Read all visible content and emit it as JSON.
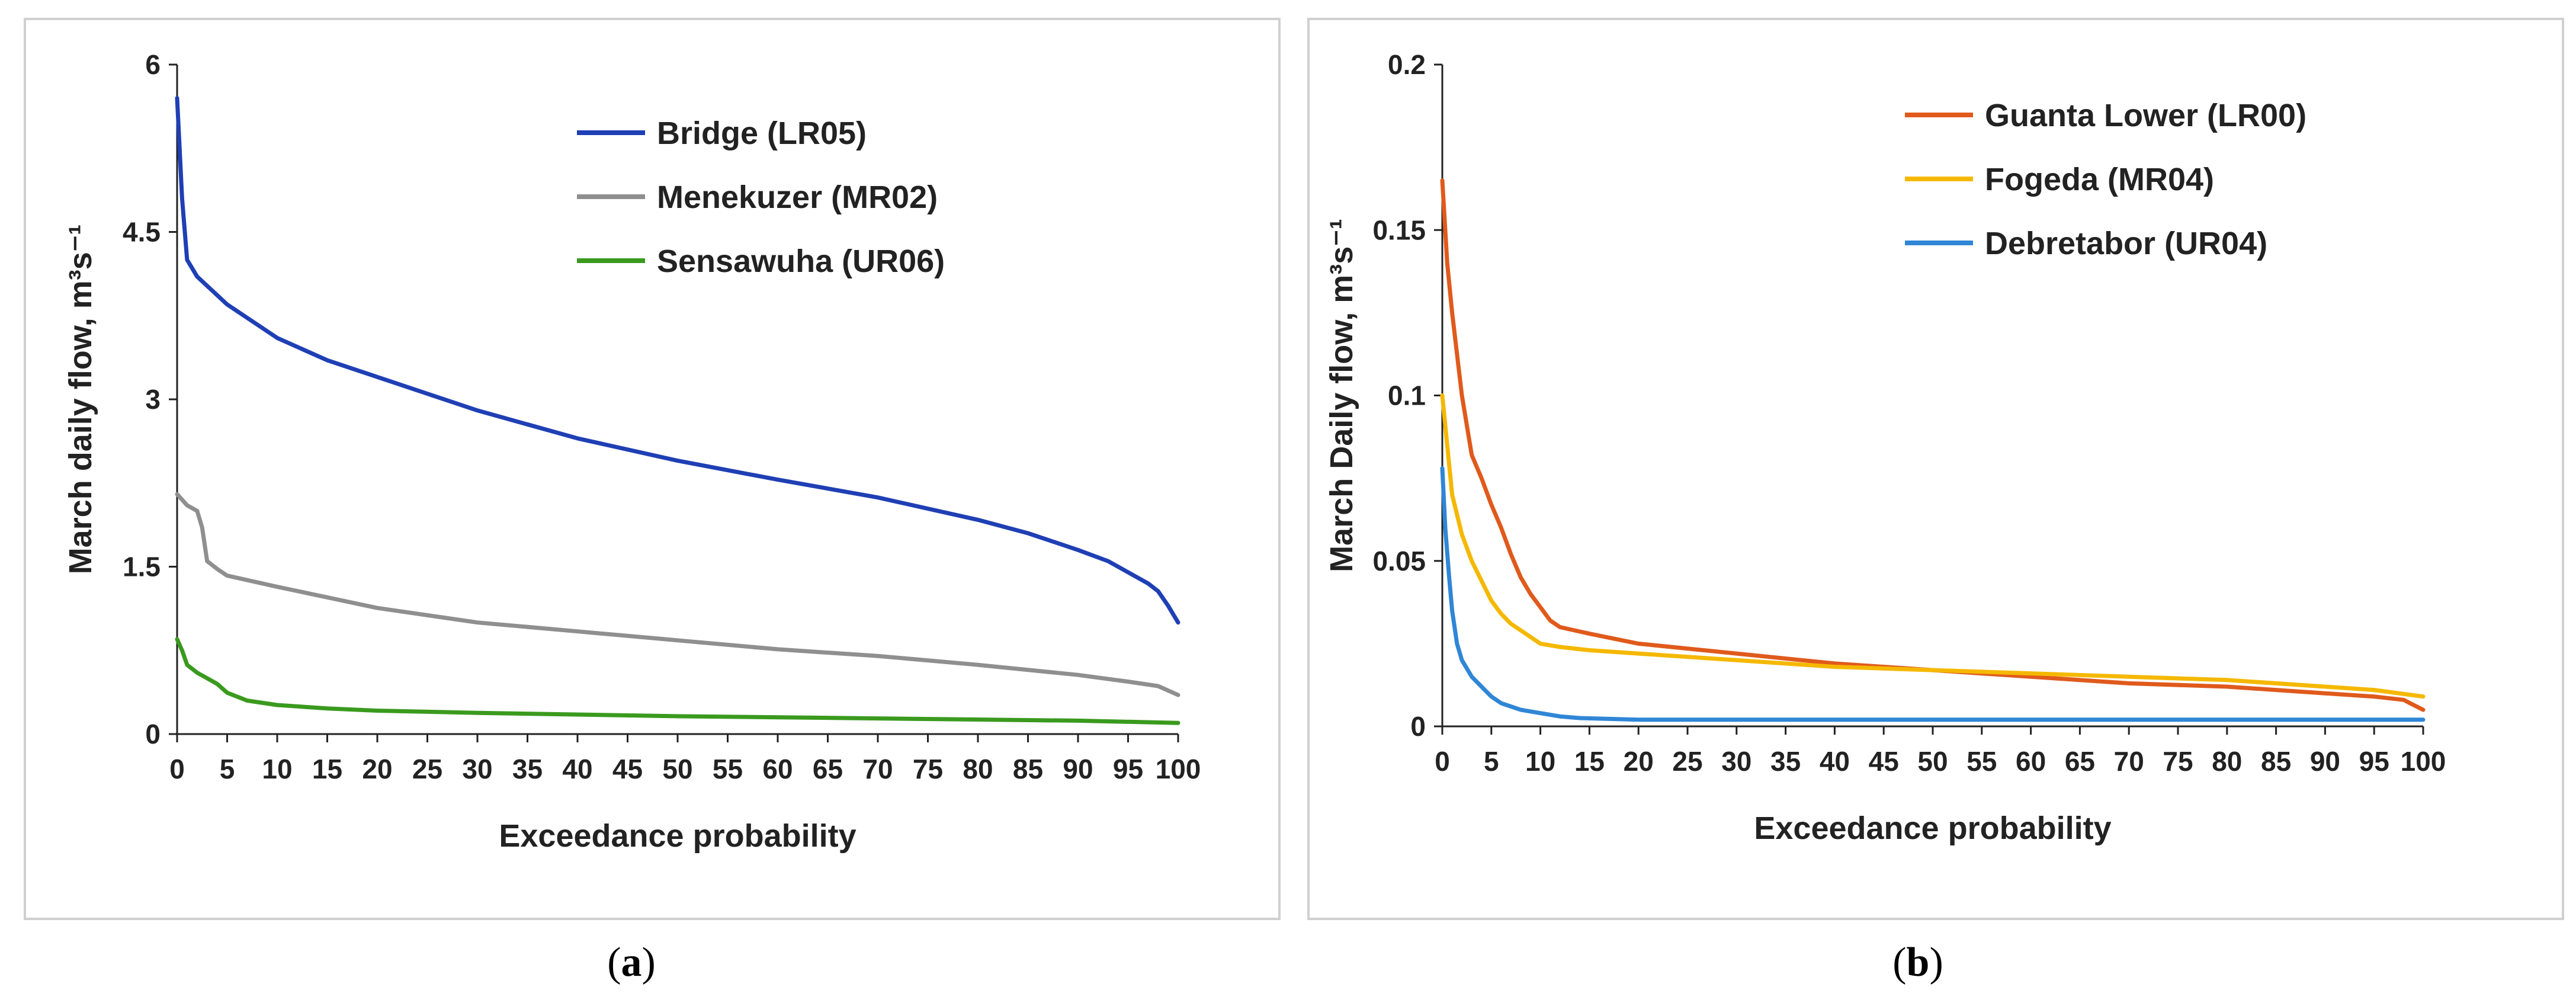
{
  "captions": {
    "a_open": "(",
    "a_letter": "a",
    "a_close": ")",
    "b_open": "(",
    "b_letter": "b",
    "b_close": ")"
  },
  "chart_data": [
    {
      "type": "line",
      "panel": "a",
      "title": "",
      "xlabel": "Exceedance probability",
      "ylabel": "March daily flow, m³s⁻¹",
      "xlim": [
        0,
        100
      ],
      "ylim": [
        0,
        6
      ],
      "xticks": [
        0,
        5,
        10,
        15,
        20,
        25,
        30,
        35,
        40,
        45,
        50,
        55,
        60,
        65,
        70,
        75,
        80,
        85,
        90,
        95,
        100
      ],
      "yticks": [
        0,
        1.5,
        3,
        4.5,
        6
      ],
      "ytick_labels": [
        "0",
        "1.5",
        "3",
        "4.5",
        "6"
      ],
      "legend_position": "top-right",
      "series": [
        {
          "name": "Bridge (LR05)",
          "color": "#1f3fb4",
          "x": [
            0,
            0.5,
            1,
            2,
            5,
            10,
            15,
            20,
            30,
            40,
            50,
            60,
            70,
            80,
            85,
            90,
            93,
            95,
            97,
            98,
            99,
            100
          ],
          "y": [
            5.7,
            4.8,
            4.25,
            4.1,
            3.85,
            3.55,
            3.35,
            3.2,
            2.9,
            2.65,
            2.45,
            2.28,
            2.12,
            1.92,
            1.8,
            1.65,
            1.55,
            1.45,
            1.35,
            1.28,
            1.15,
            1.0
          ]
        },
        {
          "name": "Menekuzer (MR02)",
          "color": "#8f8f8f",
          "x": [
            0,
            1,
            2,
            2.5,
            3,
            4,
            5,
            10,
            20,
            30,
            40,
            50,
            60,
            70,
            80,
            90,
            95,
            98,
            100
          ],
          "y": [
            2.15,
            2.05,
            2.0,
            1.85,
            1.55,
            1.48,
            1.42,
            1.32,
            1.13,
            1.0,
            0.92,
            0.84,
            0.76,
            0.7,
            0.62,
            0.53,
            0.47,
            0.43,
            0.35
          ]
        },
        {
          "name": "Sensawuha (UR06)",
          "color": "#3a9a1e",
          "x": [
            0,
            0.5,
            1,
            2,
            3,
            4,
            5,
            7,
            10,
            15,
            20,
            30,
            50,
            70,
            90,
            100
          ],
          "y": [
            0.85,
            0.75,
            0.62,
            0.55,
            0.5,
            0.45,
            0.37,
            0.3,
            0.26,
            0.23,
            0.21,
            0.19,
            0.16,
            0.14,
            0.12,
            0.1
          ]
        }
      ]
    },
    {
      "type": "line",
      "panel": "b",
      "title": "",
      "xlabel": "Exceedance probability",
      "ylabel": "March Daily flow, m³s⁻¹",
      "xlim": [
        0,
        100
      ],
      "ylim": [
        0,
        0.2
      ],
      "xticks": [
        0,
        5,
        10,
        15,
        20,
        25,
        30,
        35,
        40,
        45,
        50,
        55,
        60,
        65,
        70,
        75,
        80,
        85,
        90,
        95,
        100
      ],
      "yticks": [
        0,
        0.05,
        0.1,
        0.15,
        0.2
      ],
      "ytick_labels": [
        "0",
        "0.05",
        "0.1",
        "0.15",
        "0.2"
      ],
      "legend_position": "top-right",
      "series": [
        {
          "name": "Guanta Lower (LR00)",
          "color": "#e05a1c",
          "x": [
            0,
            0.5,
            1,
            2,
            3,
            4,
            5,
            6,
            7,
            8,
            9,
            10,
            11,
            12,
            15,
            20,
            30,
            40,
            50,
            60,
            70,
            80,
            90,
            95,
            98,
            100
          ],
          "y": [
            0.165,
            0.14,
            0.125,
            0.1,
            0.082,
            0.075,
            0.067,
            0.06,
            0.052,
            0.045,
            0.04,
            0.036,
            0.032,
            0.03,
            0.028,
            0.025,
            0.022,
            0.019,
            0.017,
            0.015,
            0.013,
            0.012,
            0.01,
            0.009,
            0.008,
            0.005
          ]
        },
        {
          "name": "Fogeda (MR04)",
          "color": "#f5b800",
          "x": [
            0,
            0.5,
            1,
            2,
            3,
            4,
            5,
            6,
            7,
            8,
            9,
            10,
            12,
            15,
            20,
            30,
            40,
            50,
            60,
            70,
            80,
            90,
            95,
            100
          ],
          "y": [
            0.1,
            0.085,
            0.07,
            0.058,
            0.05,
            0.044,
            0.038,
            0.034,
            0.031,
            0.029,
            0.027,
            0.025,
            0.024,
            0.023,
            0.022,
            0.02,
            0.018,
            0.017,
            0.016,
            0.015,
            0.014,
            0.012,
            0.011,
            0.009
          ]
        },
        {
          "name": "Debretabor (UR04)",
          "color": "#2f86d6",
          "x": [
            0,
            0.3,
            0.7,
            1,
            1.5,
            2,
            3,
            4,
            5,
            6,
            7,
            8,
            10,
            12,
            14,
            20,
            40,
            60,
            80,
            100
          ],
          "y": [
            0.078,
            0.06,
            0.045,
            0.035,
            0.025,
            0.02,
            0.015,
            0.012,
            0.009,
            0.007,
            0.006,
            0.005,
            0.004,
            0.003,
            0.0025,
            0.002,
            0.002,
            0.002,
            0.002,
            0.002
          ]
        }
      ]
    }
  ]
}
